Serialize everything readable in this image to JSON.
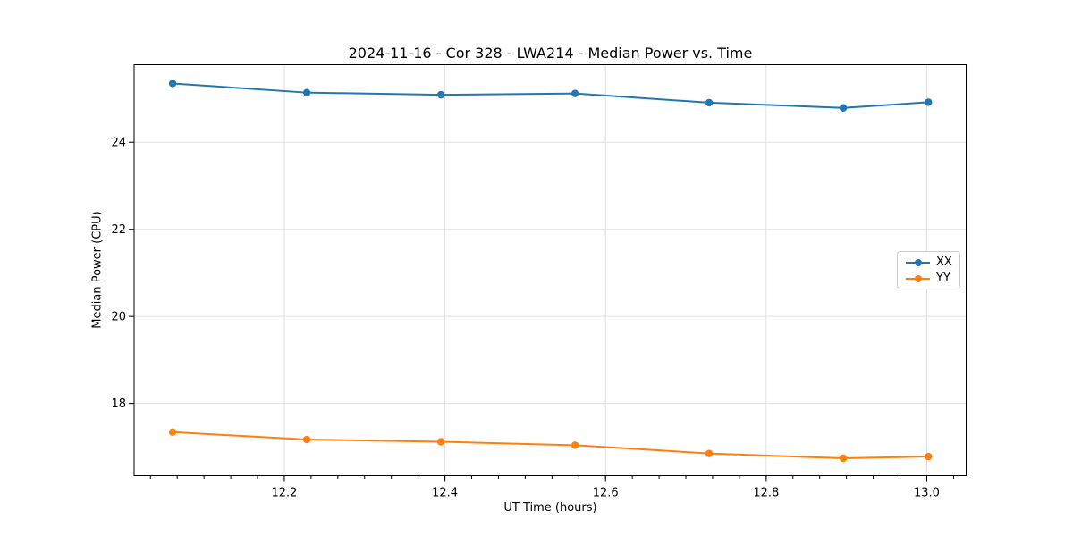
{
  "chart_data": {
    "type": "line",
    "title": "2024-11-16 - Cor 328 - LWA214 - Median Power vs. Time",
    "xlabel": "UT Time (hours)",
    "ylabel": "Median Power (CPU)",
    "x": [
      12.061,
      12.228,
      12.395,
      12.562,
      12.729,
      12.896,
      13.002
    ],
    "series": [
      {
        "name": "XX",
        "color": "#1f77b4",
        "values": [
          25.35,
          25.14,
          25.09,
          25.12,
          24.91,
          24.79,
          24.92
        ]
      },
      {
        "name": "YY",
        "color": "#ff7f0e",
        "values": [
          17.34,
          17.17,
          17.12,
          17.04,
          16.85,
          16.74,
          16.78
        ]
      }
    ],
    "xlim": [
      12.013,
      13.049
    ],
    "ylim": [
      16.34,
      25.78
    ],
    "x_ticks": [
      12.2,
      12.4,
      12.6,
      12.8,
      13.0
    ],
    "x_tick_labels": [
      "12.2",
      "12.4",
      "12.6",
      "12.8",
      "13.0"
    ],
    "y_ticks": [
      18,
      20,
      22,
      24
    ],
    "y_tick_labels": [
      "18",
      "20",
      "22",
      "24"
    ],
    "x_minor_tick_step": 0.0333333,
    "grid": true,
    "grid_color": "#e0e0e0",
    "spine_color": "#000000",
    "legend_position": "center right",
    "legend_entries": [
      "XX",
      "YY"
    ],
    "marker": "circle"
  }
}
